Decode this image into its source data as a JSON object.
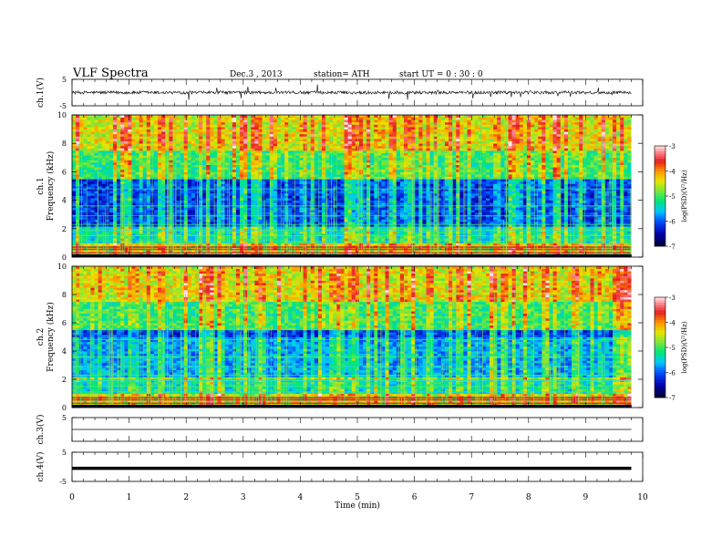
{
  "header": {
    "title": "VLF Spectra",
    "date": "Dec.3 , 2013",
    "station": "station= ATH",
    "start": "start UT = 0 : 30 : 0"
  },
  "chart_data": [
    {
      "type": "line",
      "panel": "ch1-waveform",
      "ylabel": "ch.1(V)",
      "ylim": [
        -5,
        5
      ],
      "y_ticks": [
        5,
        -5
      ],
      "xlim": [
        0,
        10
      ],
      "trace_end_min": 9.8,
      "baseline_v": 0.0,
      "noise_amplitude_v": 0.6
    },
    {
      "type": "heatmap",
      "panel": "ch1-spectrogram",
      "ylabel": "ch.1\nFrequency (kHz)",
      "ylim": [
        0,
        10
      ],
      "y_ticks": [
        0,
        2,
        4,
        6,
        8,
        10
      ],
      "xlim": [
        0,
        10
      ],
      "data_end_min": 9.8,
      "colorbar": {
        "label": "log(PSD)(V²/Hz)",
        "range": [
          -7,
          -3
        ],
        "ticks": [
          "-3",
          "-4",
          "-5",
          "-6",
          "-7"
        ]
      }
    },
    {
      "type": "heatmap",
      "panel": "ch2-spectrogram",
      "ylabel": "ch.2\nFrequency (kHz)",
      "ylim": [
        0,
        10
      ],
      "y_ticks": [
        0,
        2,
        4,
        6,
        8,
        10
      ],
      "xlim": [
        0,
        10
      ],
      "data_end_min": 9.8,
      "colorbar": {
        "label": "log(PSD)(V²/Hz)",
        "range": [
          -7,
          -3
        ],
        "ticks": [
          "-3",
          "-4",
          "-5",
          "-6",
          "-7"
        ]
      }
    },
    {
      "type": "line",
      "panel": "ch3-waveform",
      "ylabel": "ch.3(V)",
      "ylim": [
        -5,
        5
      ],
      "y_ticks": [
        5
      ],
      "xlim": [
        0,
        10
      ],
      "trace_end_min": 9.8,
      "baseline_v": 0.0
    },
    {
      "type": "line",
      "panel": "ch4-waveform",
      "ylabel": "ch.4(V)",
      "ylim": [
        -5,
        5
      ],
      "y_ticks": [
        5,
        -5
      ],
      "xlim": [
        0,
        10
      ],
      "trace_end_min": 9.8,
      "baseline_v": -0.5
    }
  ],
  "x_axis": {
    "label": "Time (min)",
    "ticks": [
      "0",
      "1",
      "2",
      "3",
      "4",
      "5",
      "6",
      "7",
      "8",
      "9",
      "10"
    ]
  }
}
